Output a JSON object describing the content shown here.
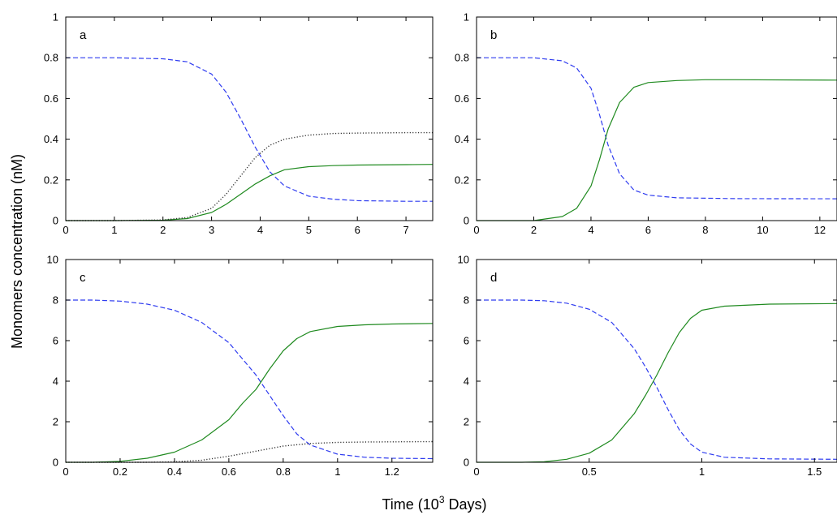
{
  "figure": {
    "ylabel": "Monomers concentration (nM)",
    "xlabel": "Time (10",
    "xlabel_sup": "3",
    "xlabel_tail": " Days)"
  },
  "colors": {
    "blue": "#2f3cf0",
    "green": "#1f8a1f",
    "black": "#333333"
  },
  "chart_data": [
    {
      "type": "line",
      "panel": "a",
      "xlim": [
        0,
        7.55
      ],
      "ylim": [
        0,
        1
      ],
      "xticks": [
        0,
        1,
        2,
        3,
        4,
        5,
        6,
        7
      ],
      "yticks": [
        0,
        0.2,
        0.4,
        0.6,
        0.8,
        1
      ],
      "series": [
        {
          "color": "blue",
          "style": "dashed",
          "x": [
            0,
            1,
            2,
            2.5,
            3,
            3.3,
            3.6,
            3.9,
            4.2,
            4.5,
            5,
            5.5,
            6,
            7,
            7.55
          ],
          "y": [
            0.8,
            0.8,
            0.795,
            0.78,
            0.72,
            0.63,
            0.5,
            0.36,
            0.24,
            0.17,
            0.12,
            0.105,
            0.098,
            0.095,
            0.095
          ]
        },
        {
          "color": "green",
          "style": "solid",
          "x": [
            0,
            1,
            2,
            2.5,
            3,
            3.3,
            3.6,
            3.9,
            4.2,
            4.5,
            5,
            5.5,
            6,
            7,
            7.55
          ],
          "y": [
            0,
            0,
            0.002,
            0.01,
            0.04,
            0.08,
            0.13,
            0.18,
            0.22,
            0.25,
            0.265,
            0.27,
            0.273,
            0.275,
            0.276
          ]
        },
        {
          "color": "black",
          "style": "dotted",
          "x": [
            0,
            1,
            2,
            2.5,
            3,
            3.3,
            3.6,
            3.9,
            4.2,
            4.5,
            5,
            5.5,
            6,
            7,
            7.55
          ],
          "y": [
            0,
            0,
            0.003,
            0.015,
            0.06,
            0.13,
            0.22,
            0.31,
            0.37,
            0.4,
            0.42,
            0.428,
            0.43,
            0.432,
            0.432
          ]
        }
      ]
    },
    {
      "type": "line",
      "panel": "b",
      "xlim": [
        0,
        12.6
      ],
      "ylim": [
        0,
        1
      ],
      "xticks": [
        0,
        2,
        4,
        6,
        8,
        10,
        12
      ],
      "yticks": [
        0,
        0.2,
        0.4,
        0.6,
        0.8,
        1
      ],
      "series": [
        {
          "color": "blue",
          "style": "dashed",
          "x": [
            0,
            2,
            3,
            3.5,
            4,
            4.3,
            4.6,
            5,
            5.5,
            6,
            7,
            9,
            12.6
          ],
          "y": [
            0.8,
            0.8,
            0.785,
            0.75,
            0.65,
            0.52,
            0.37,
            0.23,
            0.15,
            0.125,
            0.112,
            0.108,
            0.107
          ]
        },
        {
          "color": "green",
          "style": "solid",
          "x": [
            0,
            2,
            3,
            3.5,
            4,
            4.3,
            4.6,
            5,
            5.5,
            6,
            7,
            8,
            9,
            12.6
          ],
          "y": [
            0,
            0,
            0.02,
            0.06,
            0.17,
            0.3,
            0.45,
            0.58,
            0.655,
            0.678,
            0.688,
            0.692,
            0.692,
            0.69
          ]
        }
      ]
    },
    {
      "type": "line",
      "panel": "c",
      "xlim": [
        0,
        1.35
      ],
      "ylim": [
        0,
        10
      ],
      "xticks": [
        0,
        0.2,
        0.4,
        0.6,
        0.8,
        1,
        1.2
      ],
      "yticks": [
        0,
        2,
        4,
        6,
        8,
        10
      ],
      "series": [
        {
          "color": "blue",
          "style": "dashed",
          "x": [
            0,
            0.1,
            0.2,
            0.3,
            0.4,
            0.5,
            0.6,
            0.65,
            0.7,
            0.75,
            0.8,
            0.85,
            0.9,
            1.0,
            1.1,
            1.2,
            1.35
          ],
          "y": [
            8,
            8,
            7.95,
            7.8,
            7.5,
            6.9,
            5.9,
            5.1,
            4.3,
            3.3,
            2.3,
            1.4,
            0.85,
            0.4,
            0.25,
            0.2,
            0.18
          ]
        },
        {
          "color": "green",
          "style": "solid",
          "x": [
            0,
            0.1,
            0.2,
            0.3,
            0.4,
            0.5,
            0.6,
            0.65,
            0.7,
            0.75,
            0.8,
            0.85,
            0.9,
            1.0,
            1.1,
            1.2,
            1.35
          ],
          "y": [
            0,
            0,
            0.05,
            0.2,
            0.5,
            1.1,
            2.1,
            2.9,
            3.6,
            4.6,
            5.5,
            6.1,
            6.45,
            6.7,
            6.78,
            6.82,
            6.85
          ]
        },
        {
          "color": "black",
          "style": "dotted",
          "x": [
            0,
            0.3,
            0.4,
            0.5,
            0.6,
            0.7,
            0.8,
            0.9,
            1.0,
            1.1,
            1.2,
            1.35
          ],
          "y": [
            0,
            0,
            0.02,
            0.1,
            0.3,
            0.55,
            0.8,
            0.93,
            0.98,
            1.0,
            1.01,
            1.02
          ]
        }
      ]
    },
    {
      "type": "line",
      "panel": "d",
      "xlim": [
        0,
        1.6
      ],
      "ylim": [
        0,
        10
      ],
      "xticks": [
        0,
        0.5,
        1,
        1.5
      ],
      "yticks": [
        0,
        2,
        4,
        6,
        8,
        10
      ],
      "series": [
        {
          "color": "blue",
          "style": "dashed",
          "x": [
            0,
            0.2,
            0.3,
            0.4,
            0.5,
            0.6,
            0.7,
            0.75,
            0.8,
            0.85,
            0.9,
            0.95,
            1.0,
            1.1,
            1.3,
            1.6
          ],
          "y": [
            8,
            8,
            7.97,
            7.85,
            7.55,
            6.9,
            5.6,
            4.7,
            3.7,
            2.6,
            1.6,
            0.9,
            0.5,
            0.25,
            0.17,
            0.15
          ]
        },
        {
          "color": "green",
          "style": "solid",
          "x": [
            0,
            0.2,
            0.3,
            0.4,
            0.5,
            0.6,
            0.7,
            0.75,
            0.8,
            0.85,
            0.9,
            0.95,
            1.0,
            1.1,
            1.3,
            1.6
          ],
          "y": [
            0,
            0,
            0.03,
            0.15,
            0.45,
            1.1,
            2.4,
            3.3,
            4.3,
            5.4,
            6.4,
            7.1,
            7.5,
            7.7,
            7.8,
            7.83
          ]
        }
      ]
    }
  ]
}
